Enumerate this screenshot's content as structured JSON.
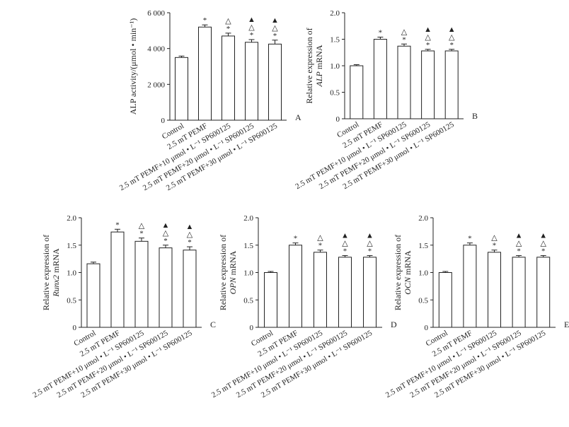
{
  "chart_data": [
    {
      "type": "bar",
      "label": "A",
      "ylabel": "ALP activity/(μmol • min⁻¹)",
      "categories": [
        "Control",
        "2.5 mT PEMF",
        "2.5 mT PEMF+10 μmol • L⁻¹ SP600125",
        "2.5 mT PEMF+20 μmol • L⁻¹ SP600125",
        "2.5 mT PEMF+30 μmol • L⁻¹ SP600125"
      ],
      "values": [
        3500,
        5200,
        4700,
        4350,
        4250
      ],
      "errors": [
        80,
        120,
        160,
        150,
        220
      ],
      "annotations": [
        [],
        [
          "*"
        ],
        [
          "△",
          "*"
        ],
        [
          "▲",
          "△",
          "*"
        ],
        [
          "▲",
          "△",
          "*"
        ]
      ],
      "color": "#ffffff",
      "ylim": [
        0,
        6000
      ],
      "yticks": [
        0,
        {
          "value": 2000,
          "label": "2 000"
        },
        {
          "value": 4000,
          "label": "4 000"
        },
        {
          "value": 6000,
          "label": "6 000"
        }
      ]
    },
    {
      "type": "bar",
      "label": "B",
      "ylabel": [
        "Relative expression of",
        "ALP",
        "mRNA"
      ],
      "categories": [
        "Control",
        "2.5 mT PEMF",
        "2.5 mT PEMF+10 μmol • L⁻¹ SP600125",
        "2.5 mT PEMF+20 μmol • L⁻¹ SP600125",
        "2.5 mT PEMF+30 μmol • L⁻¹ SP600125"
      ],
      "values": [
        1.0,
        1.5,
        1.37,
        1.28,
        1.28
      ],
      "errors": [
        0.02,
        0.04,
        0.04,
        0.03,
        0.03
      ],
      "annotations": [
        [],
        [
          "*"
        ],
        [
          "△",
          "*"
        ],
        [
          "▲",
          "△",
          "*"
        ],
        [
          "▲",
          "△",
          "*"
        ]
      ],
      "color": "#ffffff",
      "ylim": [
        0,
        2.0
      ],
      "yticks": [
        0,
        0.5,
        {
          "value": 1.0,
          "label": "1.0"
        },
        1.5,
        {
          "value": 2.0,
          "label": "2.0"
        }
      ]
    },
    {
      "type": "bar",
      "label": "C",
      "ylabel": [
        "Relative expression of",
        "Runx2",
        "mRNA"
      ],
      "categories": [
        "Control",
        "2.5 mT PEMF",
        "2.5 mT PEMF+10 μmol • L⁻¹ SP600125",
        "2.5 mT PEMF+20 μmol • L⁻¹ SP600125",
        "2.5 mT PEMF+30 μmol • L⁻¹ SP600125"
      ],
      "values": [
        1.16,
        1.74,
        1.57,
        1.45,
        1.41
      ],
      "errors": [
        0.03,
        0.05,
        0.06,
        0.05,
        0.06
      ],
      "annotations": [
        [],
        [
          "*"
        ],
        [
          "△",
          "*"
        ],
        [
          "▲",
          "△",
          "*"
        ],
        [
          "▲",
          "△",
          "*"
        ]
      ],
      "color": "#ffffff",
      "ylim": [
        0,
        2.0
      ],
      "yticks": [
        0,
        0.5,
        {
          "value": 1.0,
          "label": "1.0"
        },
        1.5,
        {
          "value": 2.0,
          "label": "2.0"
        }
      ]
    },
    {
      "type": "bar",
      "label": "D",
      "ylabel": [
        "Relative expression of",
        "OPN",
        "mRNA"
      ],
      "categories": [
        "Control",
        "2.5 mT PEMF",
        "2.5 mT PEMF+10 μmol • L⁻¹ SP600125",
        "2.5 mT PEMF+20 μmol • L⁻¹ SP600125",
        "2.5 mT PEMF+30 μmol • L⁻¹ SP600125"
      ],
      "values": [
        1.0,
        1.5,
        1.37,
        1.28,
        1.28
      ],
      "errors": [
        0.02,
        0.04,
        0.04,
        0.03,
        0.03
      ],
      "annotations": [
        [],
        [
          "*"
        ],
        [
          "△",
          "*"
        ],
        [
          "▲",
          "△",
          "*"
        ],
        [
          "▲",
          "△",
          "*"
        ]
      ],
      "color": "#ffffff",
      "ylim": [
        0,
        2.0
      ],
      "yticks": [
        0,
        0.5,
        {
          "value": 1.0,
          "label": "1.0"
        },
        1.5,
        {
          "value": 2.0,
          "label": "2.0"
        }
      ]
    },
    {
      "type": "bar",
      "label": "E",
      "ylabel": [
        "Relative expression of",
        "OCN",
        "mRNA"
      ],
      "categories": [
        "Control",
        "2.5 mT PEMF",
        "2.5 mT PEMF+10 μmol • L⁻¹ SP600125",
        "2.5 mT PEMF+20 μmol • L⁻¹ SP600125",
        "2.5 mT PEMF+30 μmol • L⁻¹ SP600125"
      ],
      "values": [
        1.0,
        1.5,
        1.37,
        1.28,
        1.28
      ],
      "errors": [
        0.02,
        0.04,
        0.04,
        0.03,
        0.03
      ],
      "annotations": [
        [],
        [
          "*"
        ],
        [
          "△",
          "*"
        ],
        [
          "▲",
          "△",
          "*"
        ],
        [
          "▲",
          "△",
          "*"
        ]
      ],
      "color": "#ffffff",
      "ylim": [
        0,
        2.0
      ],
      "yticks": [
        0,
        0.5,
        {
          "value": 1.0,
          "label": "1.0"
        },
        1.5,
        {
          "value": 2.0,
          "label": "2.0"
        }
      ]
    }
  ]
}
